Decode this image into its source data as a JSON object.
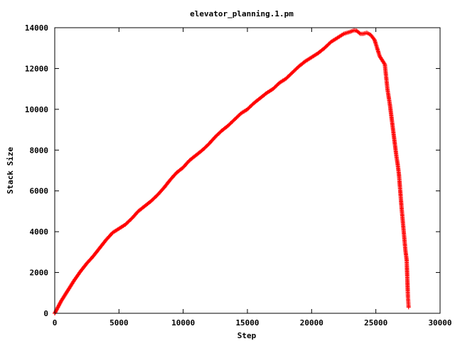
{
  "chart_data": {
    "type": "scatter",
    "title": "elevator_planning.1.pm",
    "xlabel": "Step",
    "ylabel": "Stack Size",
    "xlim": [
      0,
      30000
    ],
    "ylim": [
      0,
      14000
    ],
    "xticks": [
      0,
      5000,
      10000,
      15000,
      20000,
      25000,
      30000
    ],
    "yticks": [
      0,
      2000,
      4000,
      6000,
      8000,
      10000,
      12000,
      14000
    ],
    "grid": false,
    "legend": "none",
    "marker": "plus",
    "color": "#ff0000",
    "series": [
      {
        "x": [
          0,
          500,
          1000,
          1500,
          2000,
          2500,
          3000,
          3500,
          4000,
          4500,
          5000,
          5500,
          6000,
          6500,
          7000,
          7500,
          8000,
          8500,
          9000,
          9500,
          10000,
          10500,
          11000,
          11500,
          12000,
          12500,
          13000,
          13500,
          14000,
          14500,
          15000,
          15500,
          16000,
          16500,
          17000,
          17500,
          18000,
          18500,
          19000,
          19500,
          20000,
          20500,
          21000,
          21500,
          22000,
          22500,
          23000,
          23300,
          23500,
          23800,
          24000,
          24300,
          24600,
          24900,
          25100,
          25300,
          25500,
          25700,
          25800,
          25900,
          26000,
          26100,
          26200,
          26300,
          26400,
          26500,
          26600,
          26700,
          26800,
          26900,
          27000,
          27100,
          27200,
          27300,
          27400,
          27500,
          27550
        ],
        "y": [
          0,
          600,
          1100,
          1600,
          2050,
          2450,
          2800,
          3200,
          3600,
          3950,
          4150,
          4350,
          4650,
          5000,
          5250,
          5500,
          5800,
          6150,
          6550,
          6900,
          7150,
          7500,
          7750,
          8000,
          8300,
          8650,
          8950,
          9200,
          9500,
          9800,
          10000,
          10300,
          10550,
          10800,
          11000,
          11300,
          11500,
          11800,
          12100,
          12350,
          12550,
          12750,
          13000,
          13300,
          13500,
          13700,
          13800,
          13870,
          13850,
          13700,
          13700,
          13750,
          13650,
          13400,
          13000,
          12600,
          12400,
          12200,
          11600,
          11000,
          10600,
          10200,
          9700,
          9200,
          8700,
          8200,
          7700,
          7300,
          6800,
          6000,
          5200,
          4500,
          3800,
          3100,
          2600,
          800,
          300
        ]
      }
    ]
  }
}
